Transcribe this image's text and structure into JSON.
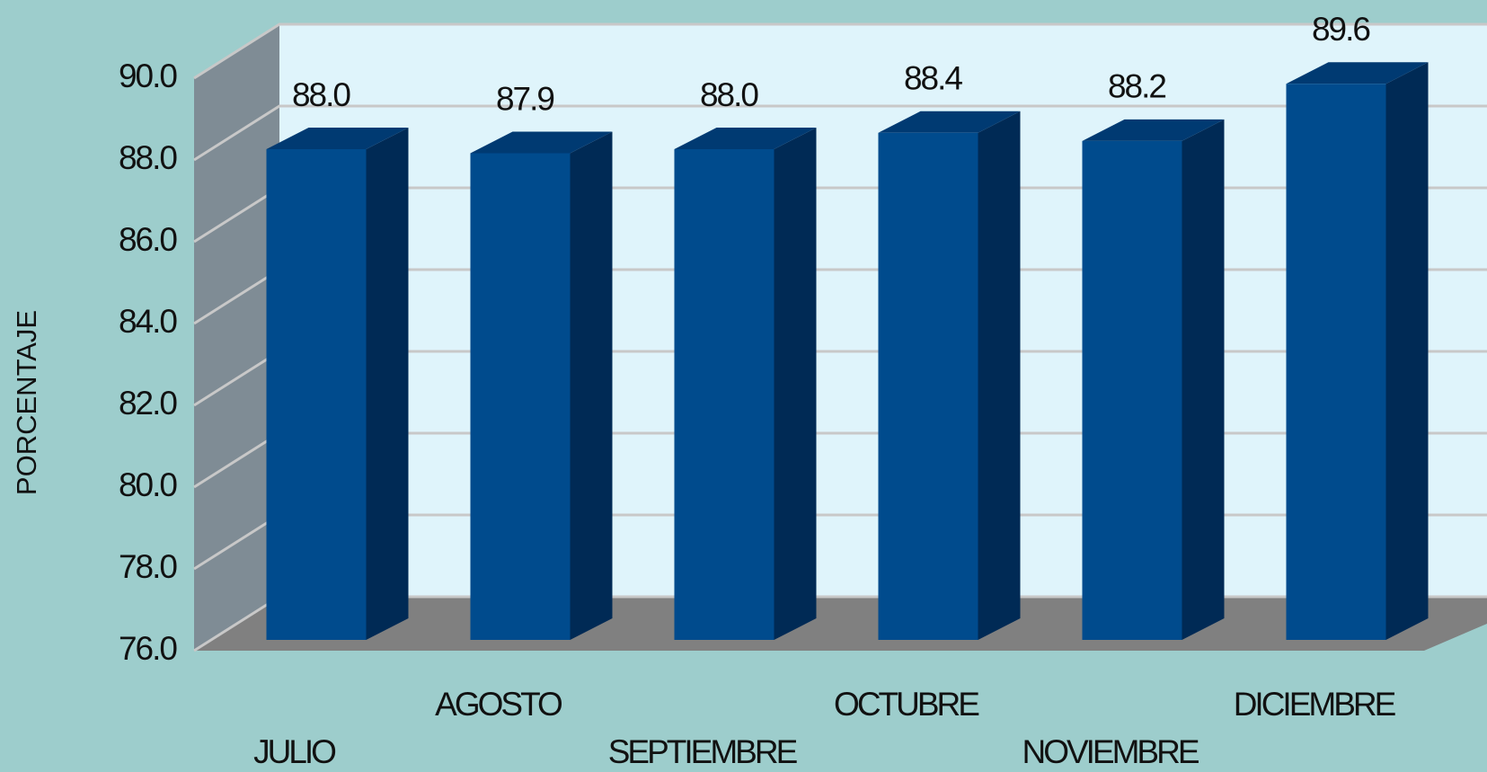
{
  "chart_data": {
    "type": "bar3d",
    "y_label": "PORCENTAJE",
    "categories": [
      "JULIO",
      "AGOSTO",
      "SEPTIEMBRE",
      "OCTUBRE",
      "NOVIEMBRE",
      "DICIEMBRE"
    ],
    "values": [
      88.0,
      87.9,
      88.0,
      88.4,
      88.2,
      89.6
    ],
    "value_labels": [
      "88.0",
      "87.9",
      "88.0",
      "88.4",
      "88.2",
      "89.6"
    ],
    "color": "#004b8d",
    "ylim": [
      76,
      90
    ],
    "yticks": [
      {
        "value": 76,
        "label": "76.0"
      },
      {
        "value": 78,
        "label": "78.0"
      },
      {
        "value": 80,
        "label": "80.0"
      },
      {
        "value": 82,
        "label": "82.0"
      },
      {
        "value": 84,
        "label": "84.0"
      },
      {
        "value": 86,
        "label": "86.0"
      },
      {
        "value": 88,
        "label": "88.0"
      },
      {
        "value": 90,
        "label": "90.0"
      }
    ],
    "grid": true
  }
}
